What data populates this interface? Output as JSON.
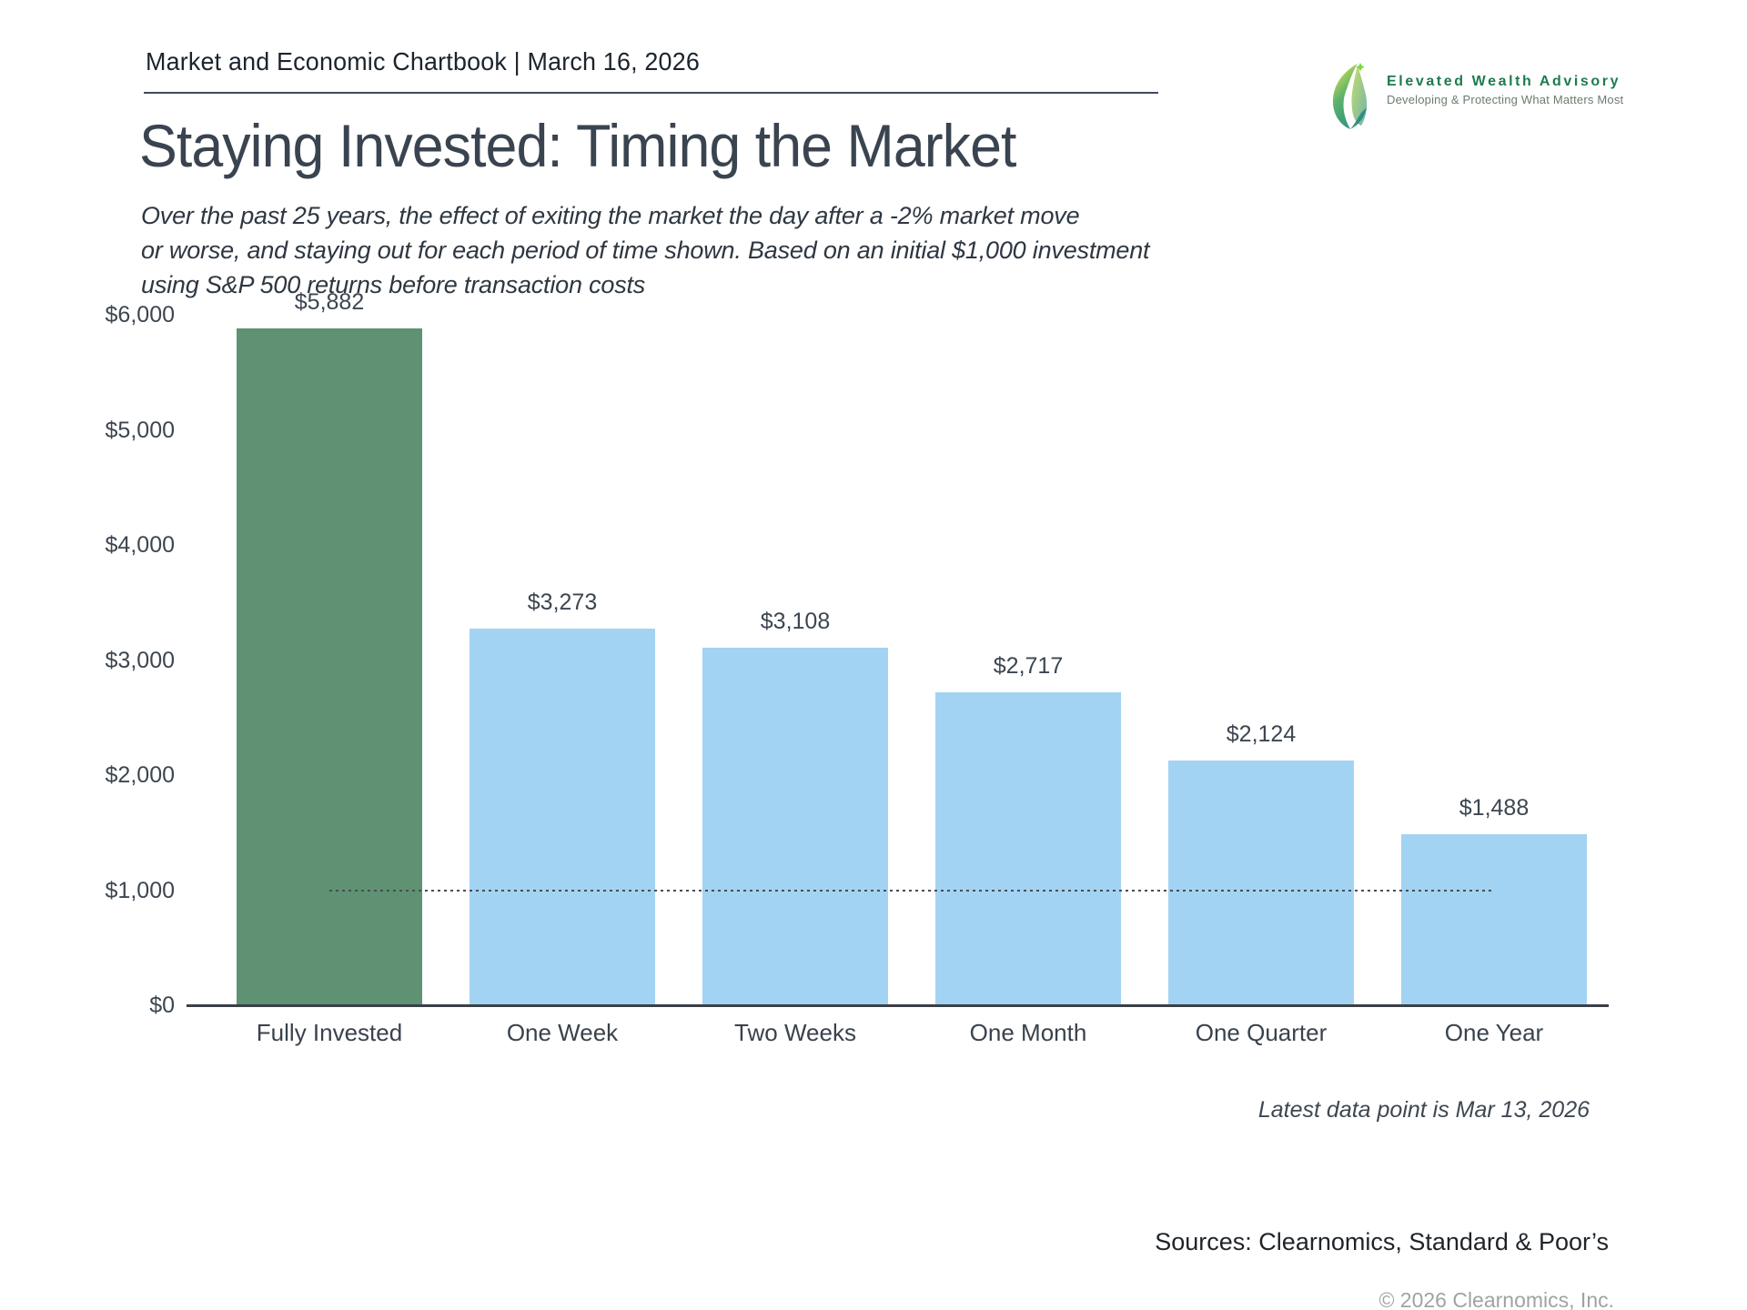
{
  "header": {
    "title": "Market and Economic Chartbook | March 16, 2026"
  },
  "logo": {
    "name": "Elevated Wealth Advisory",
    "tagline": "Developing & Protecting What Matters Most"
  },
  "page": {
    "title": "Staying Invested: Timing the Market",
    "subtitle": "Over the past 25 years, the effect of exiting the market the day after a -2% market move\nor worse, and staying out for each period of time shown. Based on an initial $1,000 investment\nusing S&P 500 returns before transaction costs"
  },
  "chart_data": {
    "type": "bar",
    "categories": [
      "Fully Invested",
      "One Week",
      "Two Weeks",
      "One Month",
      "One Quarter",
      "One Year"
    ],
    "values": [
      5882,
      3273,
      3108,
      2717,
      2124,
      1488
    ],
    "value_labels": [
      "$5,882",
      "$3,273",
      "$3,108",
      "$2,717",
      "$2,124",
      "$1,488"
    ],
    "bar_colors": [
      "#5f9272",
      "#a3d3f2",
      "#a3d3f2",
      "#a3d3f2",
      "#a3d3f2",
      "#a3d3f2"
    ],
    "highlight_color": "#5f9272",
    "default_color": "#a3d3f2",
    "ylim": [
      0,
      6000
    ],
    "ytick_values": [
      0,
      1000,
      2000,
      3000,
      4000,
      5000,
      6000
    ],
    "ytick_labels": [
      "$0",
      "$1,000",
      "$2,000",
      "$3,000",
      "$4,000",
      "$5,000",
      "$6,000"
    ],
    "reference_line": {
      "value": 1000,
      "style": "dotted"
    },
    "grid": "off",
    "legend": "none",
    "title": "",
    "xlabel": "",
    "ylabel": ""
  },
  "footer": {
    "latest": "Latest data point is Mar 13, 2026",
    "sources": "Sources: Clearnomics, Standard & Poor’s",
    "copyright": "© 2026 Clearnomics, Inc."
  }
}
